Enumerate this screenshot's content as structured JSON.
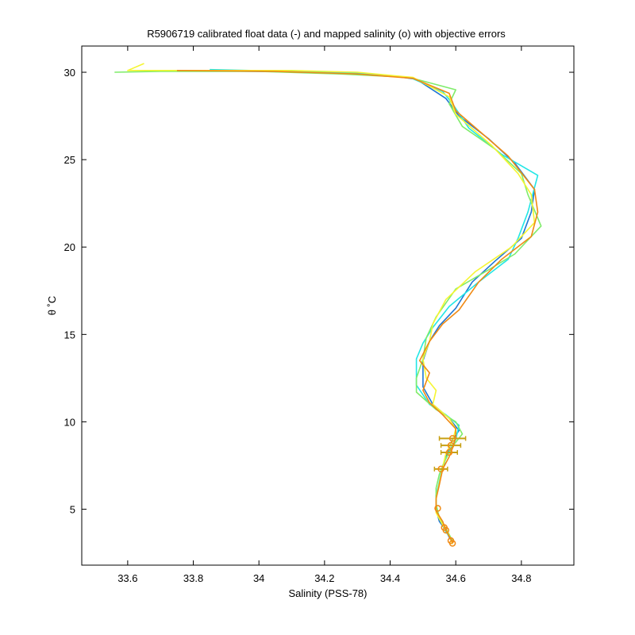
{
  "chart_data": {
    "type": "line",
    "title": "R5906719 calibrated float data (-) and mapped salinity (o) with objective errors",
    "xlabel": "Salinity (PSS-78)",
    "ylabel": "θ ˚C",
    "xlim": [
      33.46,
      34.96
    ],
    "ylim": [
      1.8,
      31.5
    ],
    "xticks": [
      33.6,
      33.8,
      34.0,
      34.2,
      34.4,
      34.6,
      34.8
    ],
    "xtick_labels": [
      "33.6",
      "33.8",
      "34",
      "34.2",
      "34.4",
      "34.6",
      "34.8"
    ],
    "yticks": [
      5,
      10,
      15,
      20,
      25,
      30
    ],
    "ytick_labels": [
      "5",
      "10",
      "15",
      "20",
      "25",
      "30"
    ],
    "grid": false,
    "series": [
      {
        "color": "#1f77d4",
        "points": [
          [
            33.7,
            30.1
          ],
          [
            34.0,
            30.05
          ],
          [
            34.2,
            30.0
          ],
          [
            34.4,
            29.8
          ],
          [
            34.48,
            29.6
          ],
          [
            34.57,
            28.5
          ],
          [
            34.61,
            27.5
          ],
          [
            34.7,
            26.2
          ],
          [
            34.78,
            24.8
          ],
          [
            34.84,
            23.3
          ],
          [
            34.83,
            22.0
          ],
          [
            34.8,
            20.5
          ],
          [
            34.72,
            19.2
          ],
          [
            34.65,
            18.0
          ],
          [
            34.6,
            16.5
          ],
          [
            34.55,
            15.5
          ],
          [
            34.52,
            14.6
          ],
          [
            34.5,
            13.5
          ],
          [
            34.5,
            12.0
          ],
          [
            34.53,
            11.0
          ],
          [
            34.58,
            10.2
          ],
          [
            34.61,
            9.5
          ],
          [
            34.59,
            9.0
          ],
          [
            34.58,
            8.5
          ],
          [
            34.57,
            8.0
          ],
          [
            34.56,
            7.3
          ],
          [
            34.55,
            6.5
          ],
          [
            34.54,
            5.8
          ],
          [
            34.54,
            5.0
          ],
          [
            34.55,
            4.3
          ],
          [
            34.57,
            3.8
          ],
          [
            34.58,
            3.4
          ],
          [
            34.59,
            3.1
          ]
        ]
      },
      {
        "color": "#22e6e6",
        "points": [
          [
            33.85,
            30.15
          ],
          [
            34.1,
            30.05
          ],
          [
            34.3,
            29.95
          ],
          [
            34.46,
            29.7
          ],
          [
            34.56,
            28.9
          ],
          [
            34.59,
            28.2
          ],
          [
            34.64,
            26.8
          ],
          [
            34.74,
            25.3
          ],
          [
            34.85,
            24.1
          ],
          [
            34.82,
            22.0
          ],
          [
            34.79,
            20.5
          ],
          [
            34.76,
            19.3
          ],
          [
            34.67,
            18.0
          ],
          [
            34.58,
            16.6
          ],
          [
            34.53,
            15.4
          ],
          [
            34.5,
            14.5
          ],
          [
            34.48,
            13.6
          ],
          [
            34.48,
            12.1
          ],
          [
            34.52,
            11.0
          ],
          [
            34.57,
            10.4
          ],
          [
            34.61,
            9.8
          ],
          [
            34.6,
            9.0
          ],
          [
            34.58,
            8.3
          ],
          [
            34.56,
            7.5
          ],
          [
            34.55,
            6.6
          ],
          [
            34.54,
            5.7
          ],
          [
            34.54,
            4.9
          ],
          [
            34.56,
            4.2
          ],
          [
            34.57,
            3.7
          ],
          [
            34.59,
            3.2
          ]
        ]
      },
      {
        "color": "#7fec6a",
        "points": [
          [
            33.56,
            30.0
          ],
          [
            33.7,
            30.05
          ],
          [
            34.0,
            30.05
          ],
          [
            34.25,
            29.9
          ],
          [
            34.46,
            29.7
          ],
          [
            34.6,
            29.0
          ],
          [
            34.58,
            28.2
          ],
          [
            34.62,
            26.9
          ],
          [
            34.72,
            25.6
          ],
          [
            34.8,
            24.2
          ],
          [
            34.82,
            23.0
          ],
          [
            34.86,
            21.2
          ],
          [
            34.78,
            19.6
          ],
          [
            34.7,
            18.7
          ],
          [
            34.6,
            17.6
          ],
          [
            34.54,
            16.0
          ],
          [
            34.51,
            14.8
          ],
          [
            34.5,
            13.6
          ],
          [
            34.48,
            12.5
          ],
          [
            34.48,
            11.7
          ],
          [
            34.54,
            10.7
          ],
          [
            34.6,
            10.0
          ],
          [
            34.62,
            9.3
          ],
          [
            34.59,
            8.6
          ],
          [
            34.57,
            7.9
          ],
          [
            34.55,
            7.0
          ],
          [
            34.54,
            6.2
          ],
          [
            34.54,
            5.3
          ],
          [
            34.55,
            4.5
          ],
          [
            34.57,
            3.9
          ],
          [
            34.59,
            3.2
          ]
        ]
      },
      {
        "color": "#f5f532",
        "points": [
          [
            33.65,
            30.5
          ],
          [
            33.6,
            30.1
          ],
          [
            33.8,
            30.1
          ],
          [
            34.1,
            30.1
          ],
          [
            34.3,
            30.0
          ],
          [
            34.47,
            29.7
          ],
          [
            34.58,
            28.6
          ],
          [
            34.6,
            27.6
          ],
          [
            34.71,
            25.8
          ],
          [
            34.79,
            24.2
          ],
          [
            34.83,
            23.0
          ],
          [
            34.84,
            21.4
          ],
          [
            34.77,
            20.0
          ],
          [
            34.66,
            18.6
          ],
          [
            34.57,
            17.0
          ],
          [
            34.53,
            15.6
          ],
          [
            34.52,
            14.6
          ],
          [
            34.5,
            13.6
          ],
          [
            34.51,
            12.5
          ],
          [
            34.54,
            11.8
          ],
          [
            34.53,
            11.0
          ],
          [
            34.58,
            10.2
          ],
          [
            34.6,
            9.6
          ],
          [
            34.59,
            8.9
          ],
          [
            34.57,
            8.2
          ],
          [
            34.56,
            7.4
          ],
          [
            34.55,
            6.5
          ],
          [
            34.54,
            5.6
          ],
          [
            34.54,
            4.8
          ],
          [
            34.56,
            4.1
          ],
          [
            34.58,
            3.5
          ],
          [
            34.59,
            3.0
          ]
        ]
      },
      {
        "color": "#f08a14",
        "points": [
          [
            33.75,
            30.1
          ],
          [
            34.05,
            30.05
          ],
          [
            34.3,
            29.9
          ],
          [
            34.47,
            29.65
          ],
          [
            34.58,
            28.8
          ],
          [
            34.6,
            27.8
          ],
          [
            34.68,
            26.5
          ],
          [
            34.76,
            25.2
          ],
          [
            34.84,
            23.3
          ],
          [
            34.85,
            22.0
          ],
          [
            34.83,
            20.6
          ],
          [
            34.74,
            19.3
          ],
          [
            34.67,
            18.0
          ],
          [
            34.61,
            16.4
          ],
          [
            34.56,
            15.6
          ],
          [
            34.52,
            14.6
          ],
          [
            34.49,
            13.5
          ],
          [
            34.52,
            12.8
          ],
          [
            34.5,
            11.8
          ],
          [
            34.52,
            11.1
          ],
          [
            34.56,
            10.4
          ],
          [
            34.6,
            9.6
          ],
          [
            34.6,
            9.1
          ],
          [
            34.59,
            8.5
          ],
          [
            34.58,
            8.0
          ],
          [
            34.56,
            7.3
          ],
          [
            34.55,
            6.4
          ],
          [
            34.54,
            5.6
          ],
          [
            34.54,
            4.9
          ],
          [
            34.56,
            4.3
          ],
          [
            34.57,
            3.8
          ],
          [
            34.59,
            3.1
          ]
        ]
      }
    ],
    "mapped": {
      "color": "#f08a14",
      "errcolor": "#c8a014",
      "points": [
        {
          "x": 34.59,
          "y": 9.05,
          "err": 0.04
        },
        {
          "x": 34.585,
          "y": 8.65,
          "err": 0.03
        },
        {
          "x": 34.58,
          "y": 8.25,
          "err": 0.025
        },
        {
          "x": 34.555,
          "y": 7.3,
          "err": 0.02
        },
        {
          "x": 34.545,
          "y": 5.05,
          "err": 0.0
        },
        {
          "x": 34.565,
          "y": 3.95,
          "err": 0.0
        },
        {
          "x": 34.57,
          "y": 3.8,
          "err": 0.0
        },
        {
          "x": 34.585,
          "y": 3.2,
          "err": 0.0
        },
        {
          "x": 34.59,
          "y": 3.05,
          "err": 0.0
        }
      ]
    }
  }
}
